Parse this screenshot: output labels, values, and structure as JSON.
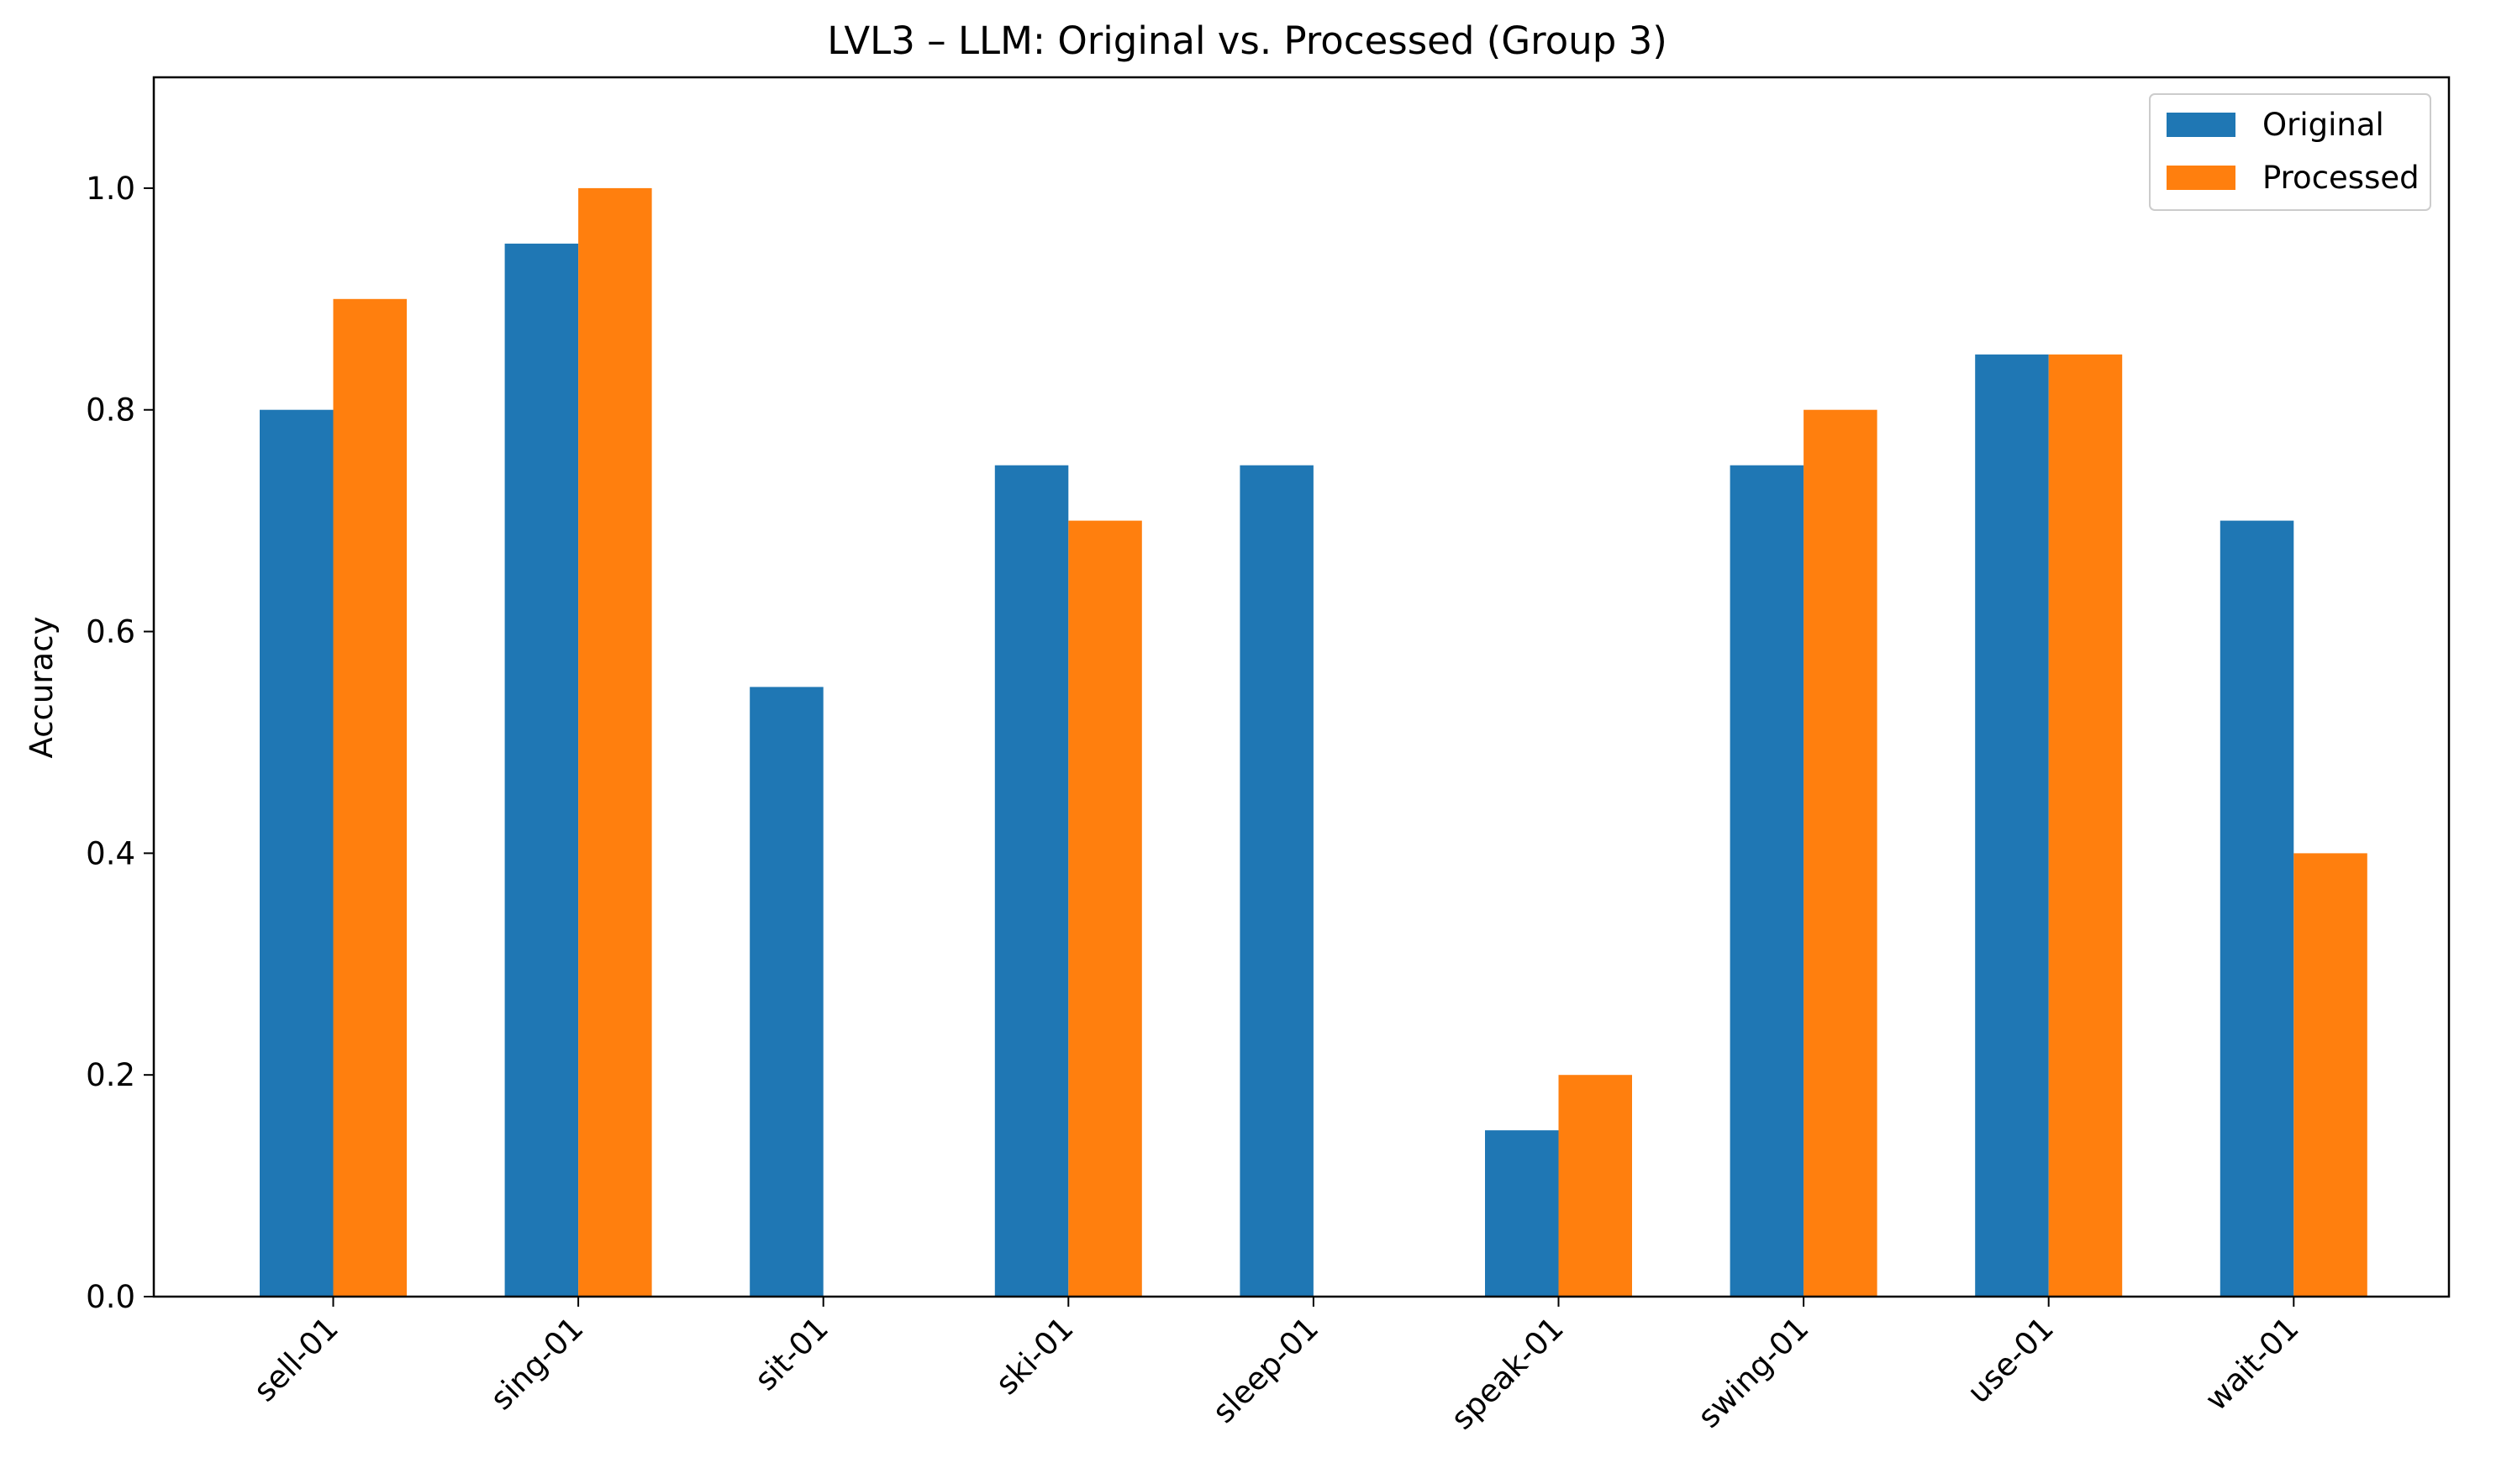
{
  "chart_data": {
    "type": "bar",
    "title": "LVL3 – LLM: Original vs. Processed (Group 3)",
    "xlabel": "",
    "ylabel": "Accuracy",
    "ylim": [
      0,
      1.1
    ],
    "yticks": [
      "0.0",
      "0.2",
      "0.4",
      "0.6",
      "0.8",
      "1.0"
    ],
    "categories": [
      "sell-01",
      "sing-01",
      "sit-01",
      "ski-01",
      "sleep-01",
      "speak-01",
      "swing-01",
      "use-01",
      "wait-01"
    ],
    "series": [
      {
        "name": "Original",
        "color": "#1f77b4",
        "values": [
          0.8,
          0.95,
          0.55,
          0.75,
          0.75,
          0.15,
          0.75,
          0.85,
          0.7
        ]
      },
      {
        "name": "Processed",
        "color": "#ff7f0e",
        "values": [
          0.9,
          1.0,
          0.0,
          0.7,
          0.0,
          0.2,
          0.8,
          0.85,
          0.4
        ]
      }
    ],
    "grid": false,
    "legend_position": "top-right"
  }
}
